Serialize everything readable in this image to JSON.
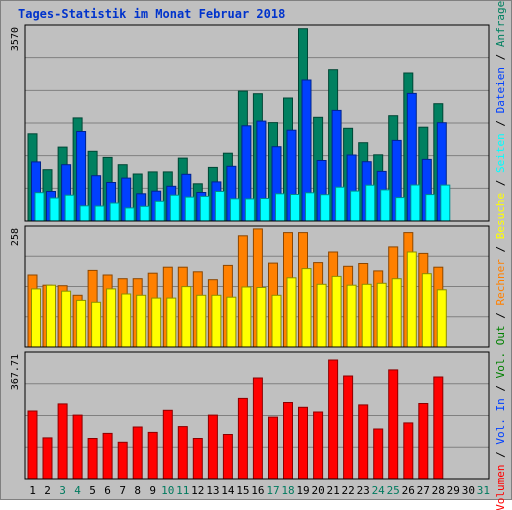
{
  "title": "Tages-Statistik im Monat Februar 2018",
  "right_legend": [
    {
      "text": "Volumen",
      "color": "#ff0000"
    },
    {
      "text": " / ",
      "color": "#000000"
    },
    {
      "text": "Vol. In",
      "color": "#0040ff"
    },
    {
      "text": " / ",
      "color": "#000000"
    },
    {
      "text": "Vol. Out",
      "color": "#008000"
    },
    {
      "text": " / ",
      "color": "#000000"
    },
    {
      "text": "Rechner",
      "color": "#ff8000"
    },
    {
      "text": " / ",
      "color": "#000000"
    },
    {
      "text": "Besuche",
      "color": "#ffff00"
    },
    {
      "text": " / ",
      "color": "#000000"
    },
    {
      "text": "Seiten",
      "color": "#00ffff"
    },
    {
      "text": " / ",
      "color": "#000000"
    },
    {
      "text": "Dateien",
      "color": "#0040ff"
    },
    {
      "text": " / ",
      "color": "#000000"
    },
    {
      "text": "Anfragen",
      "color": "#008060"
    }
  ],
  "chart_data": [
    {
      "type": "bar",
      "panel": "top",
      "ymax_label": "3570",
      "ylim": [
        0,
        3570
      ],
      "categories": [
        "1",
        "2",
        "3",
        "4",
        "5",
        "6",
        "7",
        "8",
        "9",
        "10",
        "11",
        "12",
        "13",
        "14",
        "15",
        "16",
        "17",
        "18",
        "19",
        "20",
        "21",
        "22",
        "23",
        "24",
        "25",
        "26",
        "27",
        "28"
      ],
      "series": [
        {
          "name": "Anfragen",
          "color": "#008060",
          "values": [
            1605,
            944,
            1360,
            1898,
            1282,
            1171,
            1036,
            864,
            903,
            903,
            1157,
            684,
            986,
            1248,
            2390,
            2342,
            1810,
            2263,
            3539,
            1909,
            2785,
            1706,
            1441,
            1218,
            1937,
            2723,
            1726,
            2159
          ]
        },
        {
          "name": "Dateien",
          "color": "#0040ff",
          "values": [
            1087,
            543,
            1036,
            1647,
            834,
            709,
            790,
            501,
            549,
            639,
            859,
            525,
            719,
            1006,
            1751,
            1838,
            1367,
            1670,
            2595,
            1114,
            2036,
            1214,
            1092,
            912,
            1484,
            2348,
            1134,
            1809
          ]
        },
        {
          "name": "Seiten",
          "color": "#00ffff",
          "values": [
            520,
            423,
            474,
            279,
            276,
            331,
            241,
            271,
            362,
            474,
            440,
            453,
            543,
            409,
            406,
            414,
            501,
            487,
            519,
            484,
            622,
            551,
            659,
            573,
            431,
            663,
            486,
            661
          ]
        }
      ]
    },
    {
      "type": "bar",
      "panel": "middle",
      "ymax_label": "258",
      "ylim": [
        0,
        258
      ],
      "categories": [
        "1",
        "2",
        "3",
        "4",
        "5",
        "6",
        "7",
        "8",
        "9",
        "10",
        "11",
        "12",
        "13",
        "14",
        "15",
        "16",
        "17",
        "18",
        "19",
        "20",
        "21",
        "22",
        "23",
        "24",
        "25",
        "26",
        "27",
        "28"
      ],
      "series": [
        {
          "name": "Rechner",
          "color": "#ff8000",
          "values": [
            156,
            134,
            133,
            112,
            166,
            156,
            148,
            148,
            160,
            173,
            173,
            163,
            146,
            177,
            241,
            256,
            182,
            248,
            248,
            183,
            206,
            175,
            181,
            165,
            217,
            248,
            203,
            173
          ]
        },
        {
          "name": "Besuche",
          "color": "#ffff00",
          "values": [
            126,
            134,
            121,
            101,
            97,
            126,
            115,
            112,
            106,
            106,
            131,
            112,
            112,
            108,
            130,
            129,
            112,
            150,
            170,
            136,
            153,
            134,
            136,
            138,
            148,
            206,
            159,
            124
          ]
        }
      ]
    },
    {
      "type": "bar",
      "panel": "bottom",
      "ymax_label": "367.71",
      "ylim": [
        0,
        367.71
      ],
      "categories": [
        "1",
        "2",
        "3",
        "4",
        "5",
        "6",
        "7",
        "8",
        "9",
        "10",
        "11",
        "12",
        "13",
        "14",
        "15",
        "16",
        "17",
        "18",
        "19",
        "20",
        "21",
        "22",
        "23",
        "24",
        "25",
        "26",
        "27",
        "28"
      ],
      "series": [
        {
          "name": "Volumen",
          "color": "#ff0000",
          "values": [
            200,
            121,
            221,
            188,
            119,
            134,
            108,
            153,
            137,
            202,
            154,
            119,
            188,
            131,
            237,
            297,
            182,
            225,
            211,
            197,
            350,
            303,
            218,
            147,
            321,
            165,
            222,
            300
          ]
        }
      ]
    }
  ],
  "x_labels": [
    {
      "text": "1",
      "color": "#000000"
    },
    {
      "text": "2",
      "color": "#000000"
    },
    {
      "text": "3",
      "color": "#007a5e"
    },
    {
      "text": "4",
      "color": "#007a5e"
    },
    {
      "text": "5",
      "color": "#000000"
    },
    {
      "text": "6",
      "color": "#000000"
    },
    {
      "text": "7",
      "color": "#000000"
    },
    {
      "text": "8",
      "color": "#000000"
    },
    {
      "text": "9",
      "color": "#000000"
    },
    {
      "text": "10",
      "color": "#007a5e"
    },
    {
      "text": "11",
      "color": "#007a5e"
    },
    {
      "text": "12",
      "color": "#000000"
    },
    {
      "text": "13",
      "color": "#000000"
    },
    {
      "text": "14",
      "color": "#000000"
    },
    {
      "text": "15",
      "color": "#000000"
    },
    {
      "text": "16",
      "color": "#000000"
    },
    {
      "text": "17",
      "color": "#007a5e"
    },
    {
      "text": "18",
      "color": "#007a5e"
    },
    {
      "text": "19",
      "color": "#000000"
    },
    {
      "text": "20",
      "color": "#000000"
    },
    {
      "text": "21",
      "color": "#000000"
    },
    {
      "text": "22",
      "color": "#000000"
    },
    {
      "text": "23",
      "color": "#000000"
    },
    {
      "text": "24",
      "color": "#007a5e"
    },
    {
      "text": "25",
      "color": "#007a5e"
    },
    {
      "text": "26",
      "color": "#000000"
    },
    {
      "text": "27",
      "color": "#000000"
    },
    {
      "text": "28",
      "color": "#000000"
    },
    {
      "text": "29",
      "color": "#000000"
    },
    {
      "text": "30",
      "color": "#000000"
    },
    {
      "text": "31",
      "color": "#007a5e"
    }
  ]
}
